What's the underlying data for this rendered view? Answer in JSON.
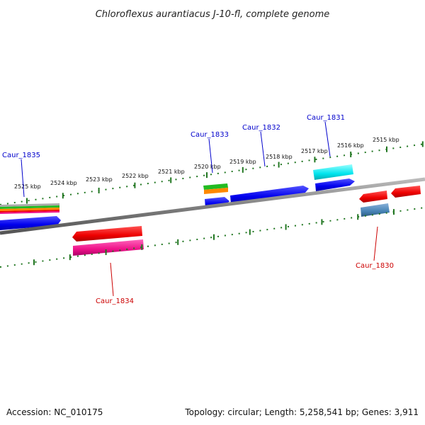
{
  "title": "Chloroflexus aurantiacus J-10-fl, complete genome",
  "footer": {
    "accession": "Accession: NC_010175",
    "summary": "Topology: circular; Length: 5,258,541 bp; Genes: 3,911"
  },
  "kbp_labels": [
    "2525 kbp",
    "2524 kbp",
    "2523 kbp",
    "2522 kbp",
    "2521 kbp",
    "2520 kbp",
    "2519 kbp",
    "2518 kbp",
    "2517 kbp",
    "2516 kbp",
    "2515 kbp"
  ],
  "genes": {
    "caur_1835": "Caur_1835",
    "caur_1833": "Caur_1833",
    "caur_1832": "Caur_1832",
    "caur_1831": "Caur_1831",
    "caur_1834": "Caur_1834",
    "caur_1830": "Caur_1830"
  },
  "colors": {
    "forward_label": "#0000cc",
    "reverse_label": "#cc0000",
    "tick": "#227722",
    "backbone": "#808080",
    "blue_gene": "#0000ee",
    "red_gene": "#ee0000",
    "magenta_gene": "#ee1188",
    "cyan_gene": "#00e5ee",
    "steelblue_gene": "#4682b4",
    "green_gene": "#22bb22",
    "orange_gene": "#ff8800"
  }
}
